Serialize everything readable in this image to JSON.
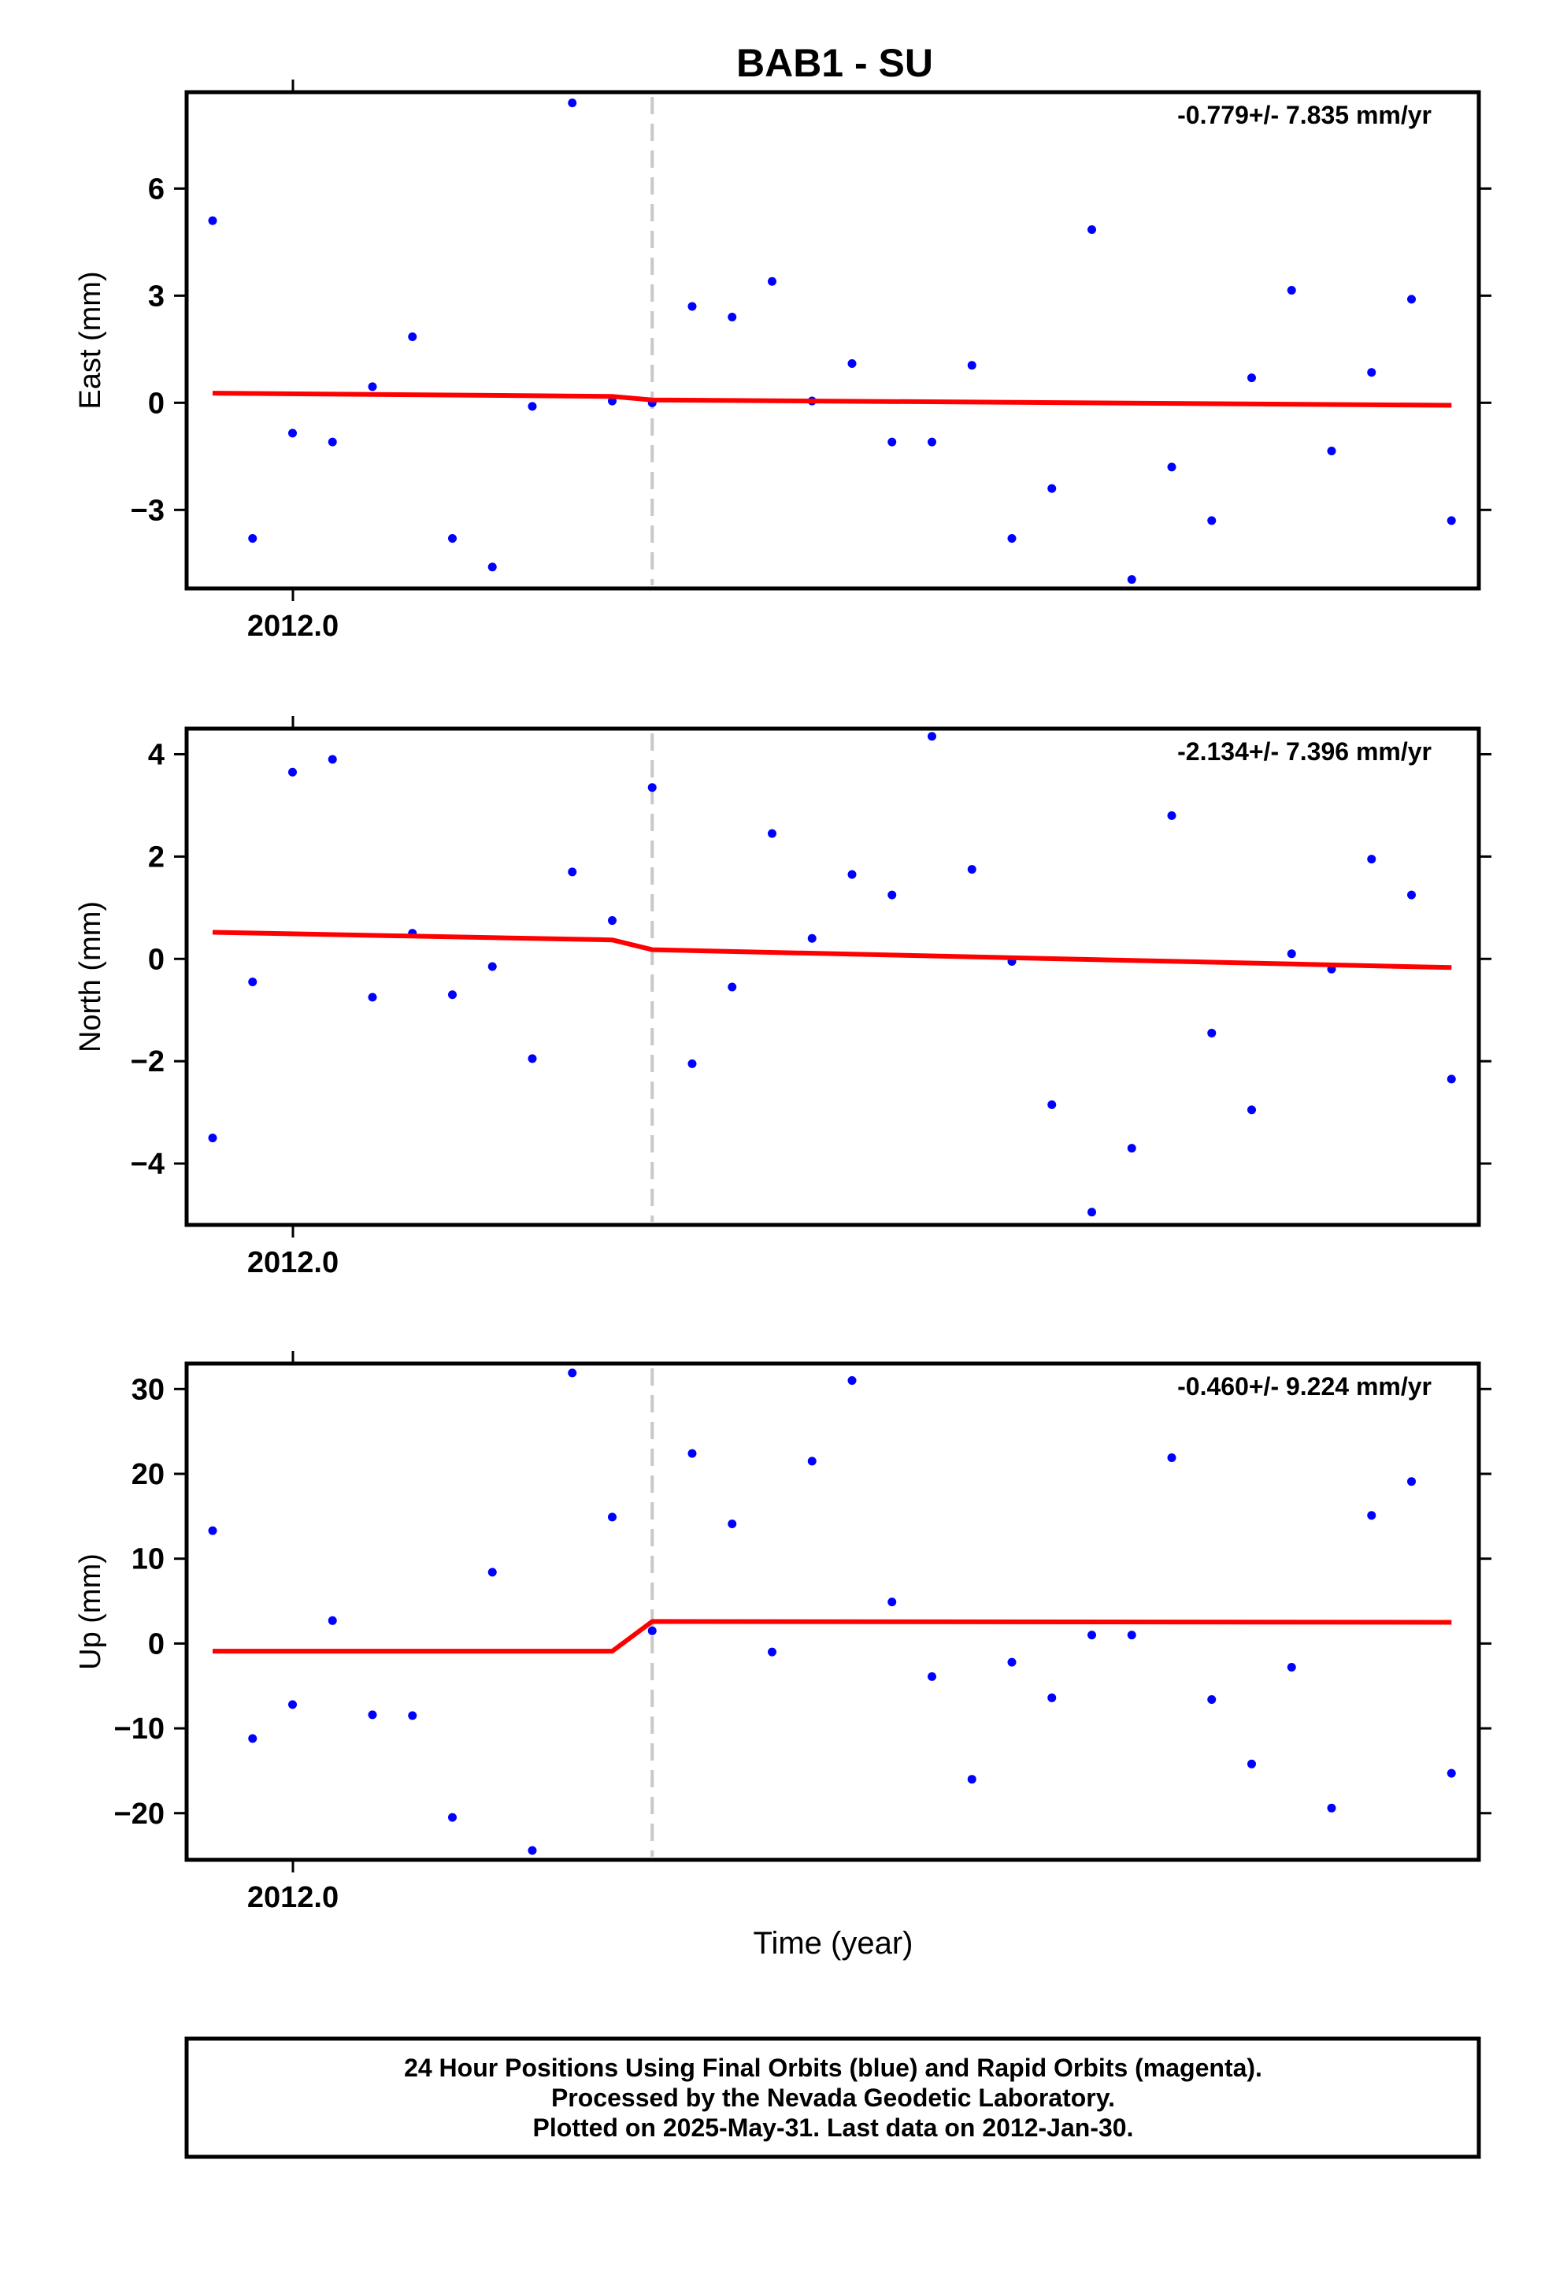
{
  "chart_data": {
    "type": "scatter",
    "title": "BAB1 - SU",
    "xlabel": "Time (year)",
    "x_tick_labels": [
      "2012.0",
      "2012.0",
      "2012.0"
    ],
    "colors": {
      "points": "#0000ff",
      "model": "#ff0000",
      "break": "#c8c8c8"
    },
    "offset_day": 11,
    "panels": [
      {
        "name": "east",
        "ylabel": "East (mm)",
        "rate": "-0.779+/- 7.835 mm/yr",
        "ylim": [
          -5.2,
          8.7
        ],
        "yticks": [
          6,
          3,
          0,
          -3
        ],
        "ytick_labels": [
          "6",
          "3",
          "0",
          "−3"
        ],
        "points": [
          5.1,
          -3.8,
          -0.85,
          -1.1,
          0.45,
          1.85,
          -3.8,
          -4.6,
          -0.1,
          8.4,
          0.05,
          0.0,
          2.7,
          2.4,
          3.4,
          0.05,
          1.1,
          -1.1,
          -1.1,
          1.05,
          -3.8,
          -2.4,
          4.85,
          -4.95,
          -1.8,
          -3.3,
          0.7,
          3.15,
          -1.35,
          0.85,
          2.9,
          -3.3
        ],
        "model": [
          [
            0,
            0.27
          ],
          [
            10,
            0.18
          ],
          [
            11,
            0.08
          ],
          [
            31,
            -0.07
          ]
        ]
      },
      {
        "name": "north",
        "ylabel": "North (mm)",
        "rate": "-2.134+/- 7.396 mm/yr",
        "ylim": [
          -5.2,
          4.5
        ],
        "yticks": [
          4,
          2,
          0,
          -2,
          -4
        ],
        "ytick_labels": [
          "4",
          "2",
          "0",
          "−2",
          "−4"
        ],
        "points": [
          -3.5,
          -0.45,
          3.65,
          3.9,
          -0.75,
          0.5,
          -0.7,
          -0.15,
          -1.95,
          1.7,
          0.75,
          3.35,
          -2.05,
          -0.55,
          2.45,
          0.4,
          1.65,
          1.25,
          4.35,
          1.75,
          -0.05,
          -2.85,
          -4.95,
          -3.7,
          2.8,
          -1.45,
          -2.95,
          0.1,
          -0.2,
          1.95,
          1.25,
          -2.35
        ],
        "model": [
          [
            0,
            0.52
          ],
          [
            10,
            0.37
          ],
          [
            11,
            0.18
          ],
          [
            31,
            -0.17
          ]
        ]
      },
      {
        "name": "up",
        "ylabel": "Up (mm)",
        "rate": "-0.460+/- 9.224 mm/yr",
        "ylim": [
          -25.5,
          33
        ],
        "yticks": [
          30,
          20,
          10,
          0,
          -10,
          -20
        ],
        "ytick_labels": [
          "30",
          "20",
          "10",
          "0",
          "−10",
          "−20"
        ],
        "points": [
          13.3,
          -11.2,
          -7.2,
          2.7,
          -8.4,
          -8.5,
          -20.5,
          8.4,
          -24.4,
          31.9,
          14.9,
          1.5,
          22.4,
          14.1,
          -1.0,
          21.5,
          31.0,
          4.9,
          -3.9,
          -16.0,
          -2.2,
          -6.4,
          1.0,
          1.0,
          21.9,
          -6.6,
          -14.2,
          -2.8,
          -19.4,
          15.1,
          19.1,
          -15.3
        ],
        "model": [
          [
            0,
            -0.9
          ],
          [
            10,
            -0.9
          ],
          [
            11,
            2.6
          ],
          [
            31,
            2.5
          ]
        ]
      }
    ]
  },
  "footer": {
    "lines": [
      "24 Hour Positions Using Final Orbits (blue) and Rapid Orbits (magenta).",
      "Processed by the Nevada Geodetic Laboratory.",
      "Plotted on 2025-May-31. Last data on 2012-Jan-30."
    ]
  }
}
